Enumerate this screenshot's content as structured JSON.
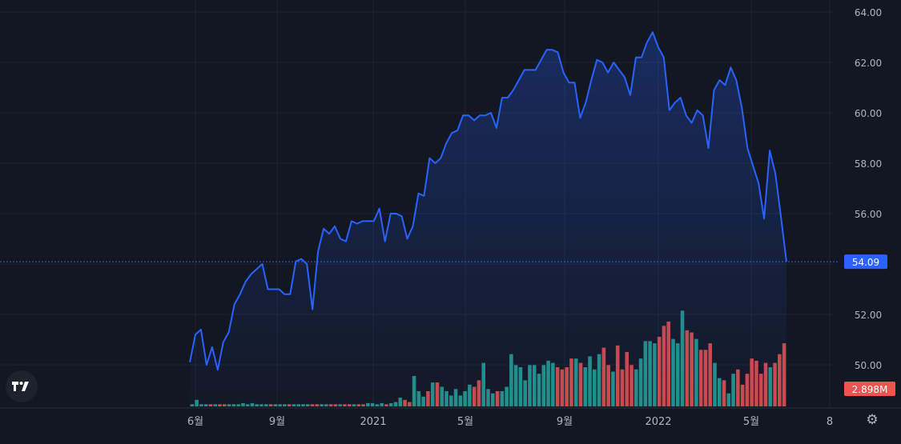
{
  "colors": {
    "background": "#131722",
    "grid": "#1f2331",
    "line": "#2962ff",
    "area_top": "rgba(41,98,255,0.28)",
    "area_bottom": "rgba(41,98,255,0.02)",
    "volume_up": "#26a69a",
    "volume_down": "#ef5350",
    "price_badge": "#2962ff",
    "volume_badge": "#ef5350",
    "axis_text": "#b2b5be"
  },
  "icons": {
    "logo": "tradingview-logo-icon",
    "settings": "gear-icon"
  },
  "chart_data": {
    "type": "area",
    "grid": true,
    "price_scale": "right",
    "y_axis": {
      "ylim": [
        48.5,
        64.5
      ],
      "tick_labels": [
        "64.00",
        "62.00",
        "60.00",
        "58.00",
        "56.00",
        "54.00",
        "52.00",
        "50.00"
      ]
    },
    "x_axis": {
      "tick_labels": [
        "6월",
        "9월",
        "2021",
        "5월",
        "9월",
        "2022",
        "5월",
        "8"
      ]
    },
    "last_price_label": "54.09",
    "last_volume_label": "2.898M",
    "series": [
      {
        "values": [
          50.1,
          51.2,
          51.4,
          50.0,
          50.7,
          49.8,
          50.9,
          51.3,
          52.4,
          52.8,
          53.3,
          53.6,
          53.8,
          54.0,
          53.0,
          53.0,
          53.0,
          52.8,
          52.8,
          54.1,
          54.2,
          54.0,
          52.2,
          54.5,
          55.4,
          55.2,
          55.5,
          55.0,
          54.9,
          55.7,
          55.6,
          55.7,
          55.7,
          55.7,
          56.2,
          54.9,
          56.0,
          56.0,
          55.9,
          55.0,
          55.5,
          56.8,
          56.7,
          58.2,
          58.0,
          58.2,
          58.8,
          59.2,
          59.3,
          59.9,
          59.9,
          59.7,
          59.9,
          59.9,
          60.0,
          59.4,
          60.6,
          60.6,
          60.9,
          61.3,
          61.7,
          61.7,
          61.7,
          62.1,
          62.5,
          62.5,
          62.4,
          61.6,
          61.2,
          61.2,
          59.8,
          60.4,
          61.3,
          62.1,
          62.0,
          61.6,
          62.0,
          61.7,
          61.4,
          60.7,
          62.2,
          62.2,
          62.8,
          63.2,
          62.6,
          62.2,
          60.1,
          60.4,
          60.6,
          59.9,
          59.6,
          60.1,
          59.9,
          58.6,
          60.9,
          61.3,
          61.1,
          61.8,
          61.3,
          60.2,
          58.6,
          57.9,
          57.2,
          55.8,
          58.5,
          57.6,
          55.9,
          54.09
        ]
      },
      {
        "name": "Volume",
        "values": [
          0.02,
          0.06,
          0.02,
          0.02,
          0.02,
          0.02,
          0.02,
          0.02,
          0.02,
          0.02,
          0.02,
          0.03,
          0.02,
          0.03,
          0.02,
          0.02,
          0.02,
          0.02,
          0.02,
          0.02,
          0.02,
          0.02,
          0.02,
          0.02,
          0.02,
          0.02,
          0.02,
          0.02,
          0.02,
          0.02,
          0.02,
          0.02,
          0.02,
          0.02,
          0.02,
          0.02,
          0.02,
          0.02,
          0.03,
          0.03,
          0.02,
          0.03,
          0.02,
          0.03,
          0.04,
          0.08,
          0.06,
          0.04,
          0.28,
          0.14,
          0.09,
          0.14,
          0.22,
          0.22,
          0.18,
          0.14,
          0.1,
          0.16,
          0.1,
          0.14,
          0.2,
          0.18,
          0.24,
          0.4,
          0.16,
          0.12,
          0.14,
          0.14,
          0.18,
          0.48,
          0.38,
          0.36,
          0.24,
          0.38,
          0.38,
          0.3,
          0.38,
          0.42,
          0.4,
          0.36,
          0.34,
          0.36,
          0.44,
          0.44,
          0.4,
          0.36,
          0.46,
          0.34,
          0.48,
          0.54,
          0.38,
          0.32,
          0.56,
          0.34,
          0.5,
          0.38,
          0.34,
          0.44,
          0.6,
          0.6,
          0.58,
          0.64,
          0.74,
          0.78,
          0.62,
          0.58,
          0.88,
          0.7,
          0.68,
          0.62,
          0.52,
          0.52,
          0.58,
          0.4,
          0.26,
          0.24,
          0.12,
          0.3,
          0.34,
          0.2,
          0.3,
          0.44,
          0.42,
          0.3,
          0.4,
          0.36,
          0.4,
          0.48,
          0.58
        ]
      }
    ]
  }
}
